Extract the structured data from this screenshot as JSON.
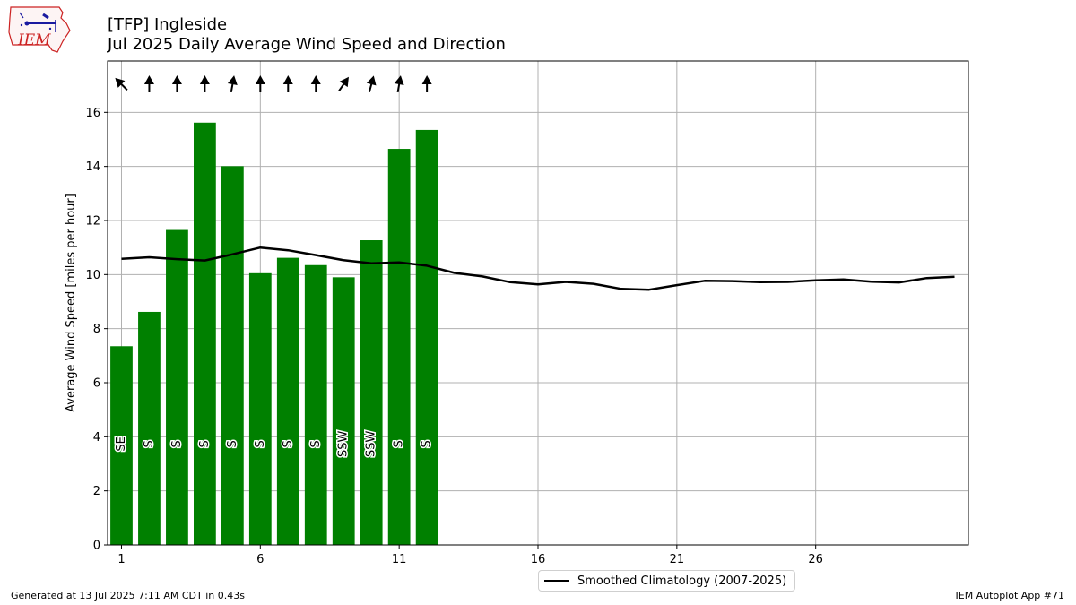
{
  "header": {
    "title_line1": "[TFP] Ingleside",
    "title_line2": "Jul 2025 Daily Average Wind Speed and Direction",
    "logo_text": "IEM"
  },
  "footer": {
    "left": "Generated at 13 Jul 2025 7:11 AM CDT in 0.43s",
    "right": "IEM Autoplot App #71"
  },
  "colors": {
    "bar": "#008000",
    "climo_line": "#000000",
    "grid": "#b0b0b0",
    "logo_red": "#cc2222",
    "logo_blue": "#1a1aa0"
  },
  "chart_data": {
    "type": "bar",
    "ylabel": "Average Wind Speed [miles per hour]",
    "xlim": [
      0.5,
      31.5
    ],
    "ylim": [
      0,
      17.9
    ],
    "xticks": [
      1,
      6,
      11,
      16,
      21,
      26
    ],
    "yticks": [
      0,
      2,
      4,
      6,
      8,
      10,
      12,
      14,
      16
    ],
    "grid": true,
    "legend_position": "below",
    "bars": {
      "days": [
        1,
        2,
        3,
        4,
        5,
        6,
        7,
        8,
        9,
        10,
        11,
        12
      ],
      "values": [
        7.35,
        8.62,
        11.65,
        15.62,
        14.01,
        10.05,
        10.62,
        10.35,
        9.9,
        11.27,
        14.65,
        15.35
      ],
      "direction_labels": [
        "SE",
        "S",
        "S",
        "S",
        "S",
        "S",
        "S",
        "S",
        "SSW",
        "SSW",
        "S",
        "S"
      ],
      "arrow_angles_deg": [
        135,
        180,
        180,
        180,
        190,
        180,
        180,
        180,
        215,
        195,
        190,
        180
      ]
    },
    "series": [
      {
        "name": "Smoothed Climatology (2007-2025)",
        "x": [
          1,
          2,
          3,
          4,
          5,
          6,
          7,
          8,
          9,
          10,
          11,
          12,
          13,
          14,
          15,
          16,
          17,
          18,
          19,
          20,
          21,
          22,
          23,
          24,
          25,
          26,
          27,
          28,
          29,
          30,
          31
        ],
        "values": [
          10.58,
          10.64,
          10.57,
          10.52,
          10.75,
          11.0,
          10.9,
          10.72,
          10.53,
          10.42,
          10.45,
          10.33,
          10.06,
          9.93,
          9.72,
          9.64,
          9.73,
          9.66,
          9.47,
          9.44,
          9.61,
          9.77,
          9.76,
          9.72,
          9.73,
          9.79,
          9.82,
          9.74,
          9.71,
          9.87,
          9.92
        ]
      }
    ]
  }
}
